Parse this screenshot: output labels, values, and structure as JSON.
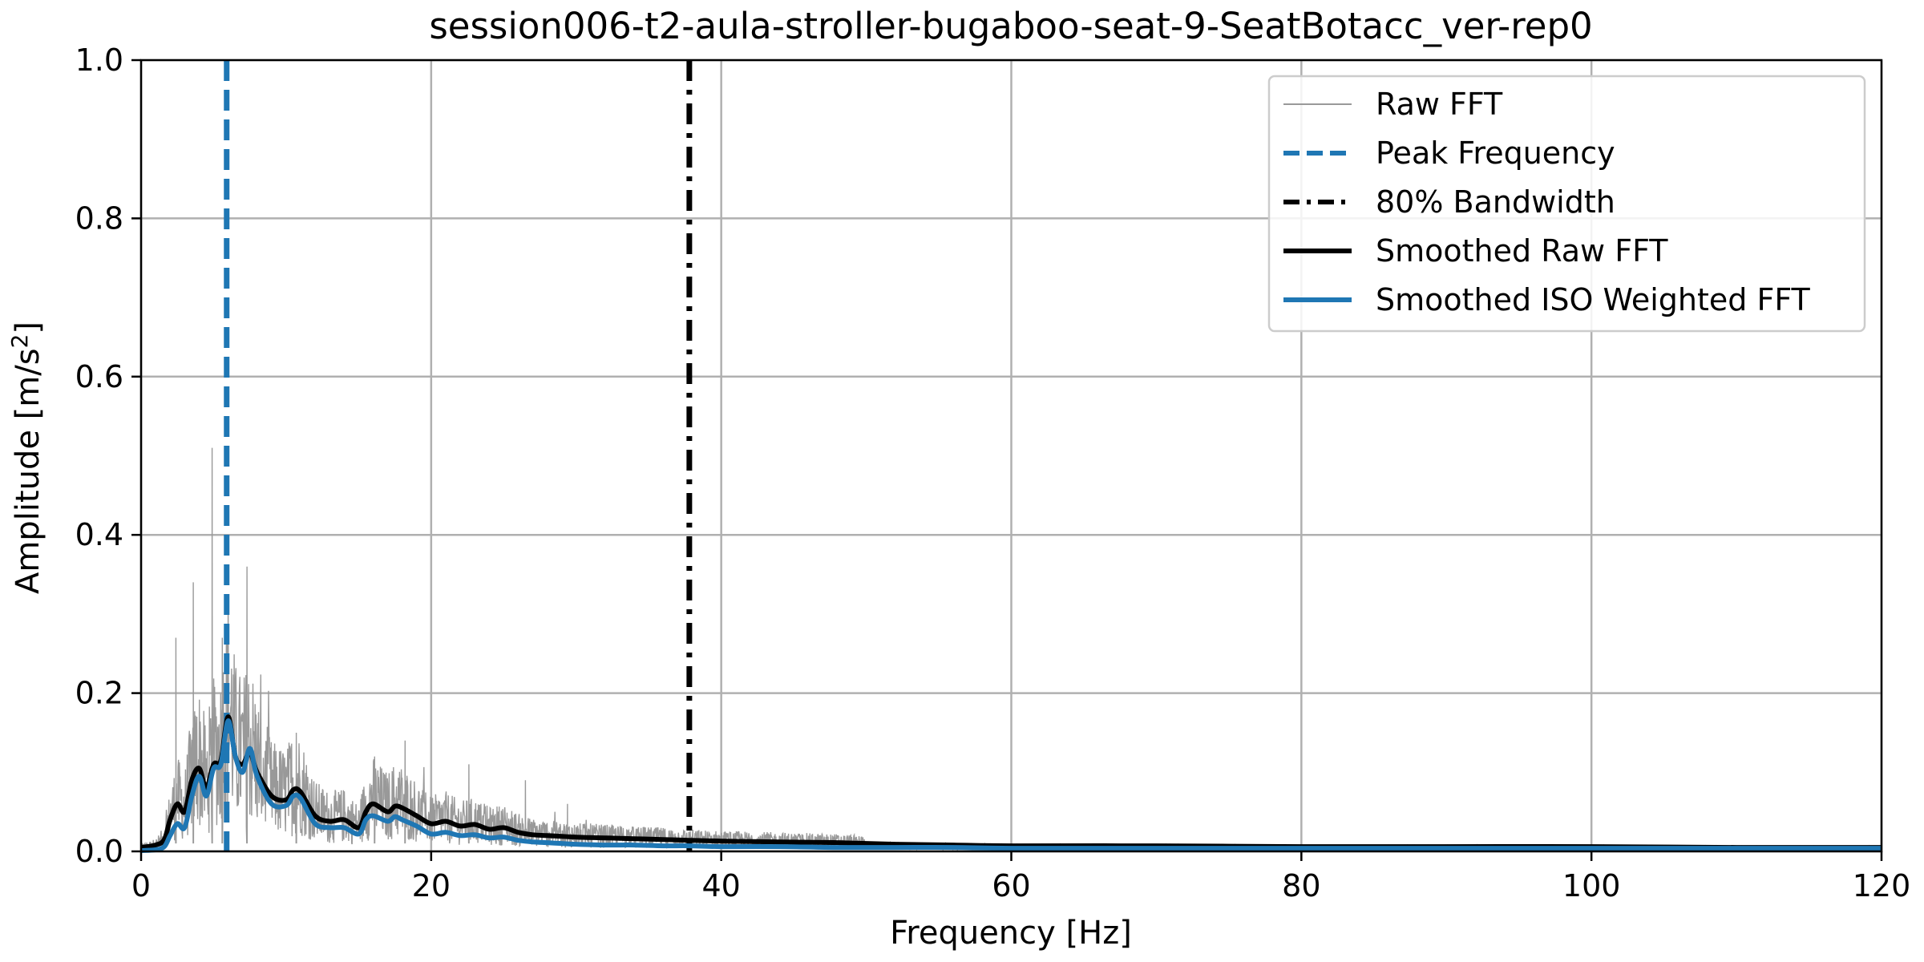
{
  "chart_data": {
    "type": "line",
    "title": "session006-t2-aula-stroller-bugaboo-seat-9-SeatBotacc_ver-rep0",
    "xlabel": "Frequency [Hz]",
    "ylabel_main": "Amplitude [m/s",
    "ylabel_sup": "2",
    "ylabel_end": "]",
    "xlim": [
      0,
      120
    ],
    "ylim": [
      0,
      1.0
    ],
    "x_ticks": [
      0,
      20,
      40,
      60,
      80,
      100,
      120
    ],
    "y_ticks": [
      0.0,
      0.2,
      0.4,
      0.6,
      0.8,
      1.0
    ],
    "x_tick_labels": [
      "0",
      "20",
      "40",
      "60",
      "80",
      "100",
      "120"
    ],
    "y_tick_labels": [
      "0.0",
      "0.2",
      "0.4",
      "0.6",
      "0.8",
      "1.0"
    ],
    "grid": true,
    "legend_position": "top-right",
    "colors": {
      "raw": "#999999",
      "peak": "#1f77b4",
      "bandwidth": "#000000",
      "smoothed_raw": "#000000",
      "smoothed_iso": "#1f77b4",
      "grid": "#b0b0b0"
    },
    "peak_frequency": 5.9,
    "bandwidth_80": 37.8,
    "raw_fft_peaks": [
      {
        "x": 2.4,
        "y": 0.27
      },
      {
        "x": 3.6,
        "y": 0.34
      },
      {
        "x": 4.9,
        "y": 0.51
      },
      {
        "x": 5.6,
        "y": 0.27
      },
      {
        "x": 7.3,
        "y": 0.36
      },
      {
        "x": 10.7,
        "y": 0.15
      },
      {
        "x": 16.1,
        "y": 0.12
      },
      {
        "x": 18.2,
        "y": 0.14
      },
      {
        "x": 22.6,
        "y": 0.11
      },
      {
        "x": 26.5,
        "y": 0.09
      },
      {
        "x": 29.4,
        "y": 0.06
      }
    ],
    "series": [
      {
        "name": "Smoothed Raw FFT",
        "x": [
          0,
          1,
          1.6,
          2,
          2.5,
          3,
          3.5,
          4,
          4.5,
          5,
          5.5,
          6,
          6.5,
          7,
          7.5,
          8,
          9,
          10,
          10.5,
          11,
          12,
          13,
          14,
          15,
          15.5,
          16,
          17,
          17.5,
          18,
          19,
          20,
          21,
          22,
          23,
          24,
          25,
          26,
          27,
          28,
          29,
          30,
          32,
          34,
          36,
          37.8,
          40,
          44,
          48,
          52,
          56,
          60,
          70,
          80,
          90,
          100,
          110,
          120
        ],
        "y": [
          0.005,
          0.008,
          0.015,
          0.04,
          0.06,
          0.05,
          0.09,
          0.105,
          0.08,
          0.11,
          0.115,
          0.17,
          0.12,
          0.11,
          0.125,
          0.1,
          0.07,
          0.065,
          0.078,
          0.075,
          0.045,
          0.038,
          0.04,
          0.03,
          0.05,
          0.06,
          0.05,
          0.057,
          0.055,
          0.045,
          0.035,
          0.038,
          0.032,
          0.034,
          0.028,
          0.03,
          0.024,
          0.021,
          0.02,
          0.019,
          0.018,
          0.017,
          0.016,
          0.015,
          0.014,
          0.013,
          0.012,
          0.011,
          0.009,
          0.008,
          0.007,
          0.007,
          0.006,
          0.006,
          0.006,
          0.005,
          0.005
        ]
      },
      {
        "name": "Smoothed ISO Weighted FFT",
        "x": [
          0,
          1,
          1.6,
          2,
          2.5,
          3,
          3.5,
          4,
          4.5,
          5,
          5.5,
          6,
          6.5,
          7,
          7.5,
          8,
          9,
          10,
          10.5,
          11,
          12,
          13,
          14,
          15,
          15.5,
          16,
          17,
          17.5,
          18,
          19,
          20,
          21,
          22,
          23,
          24,
          25,
          26,
          27,
          28,
          29,
          30,
          32,
          34,
          36,
          37.8,
          40,
          44,
          48,
          52,
          56,
          60,
          70,
          80,
          90,
          100,
          110,
          120
        ],
        "y": [
          0.001,
          0.002,
          0.006,
          0.02,
          0.035,
          0.03,
          0.07,
          0.095,
          0.07,
          0.105,
          0.11,
          0.165,
          0.12,
          0.1,
          0.13,
          0.095,
          0.06,
          0.058,
          0.07,
          0.067,
          0.035,
          0.03,
          0.03,
          0.022,
          0.04,
          0.045,
          0.038,
          0.044,
          0.04,
          0.032,
          0.022,
          0.024,
          0.02,
          0.021,
          0.017,
          0.018,
          0.014,
          0.012,
          0.011,
          0.01,
          0.009,
          0.008,
          0.008,
          0.007,
          0.007,
          0.006,
          0.006,
          0.005,
          0.005,
          0.005,
          0.004,
          0.004,
          0.004,
          0.004,
          0.004,
          0.004,
          0.004
        ]
      }
    ],
    "legend": [
      {
        "label": "Raw FFT",
        "style": "raw"
      },
      {
        "label": "Peak Frequency",
        "style": "peak"
      },
      {
        "label": "80% Bandwidth",
        "style": "bandwidth"
      },
      {
        "label": "Smoothed Raw FFT",
        "style": "smoothed_raw"
      },
      {
        "label": "Smoothed ISO Weighted FFT",
        "style": "smoothed_iso"
      }
    ]
  }
}
